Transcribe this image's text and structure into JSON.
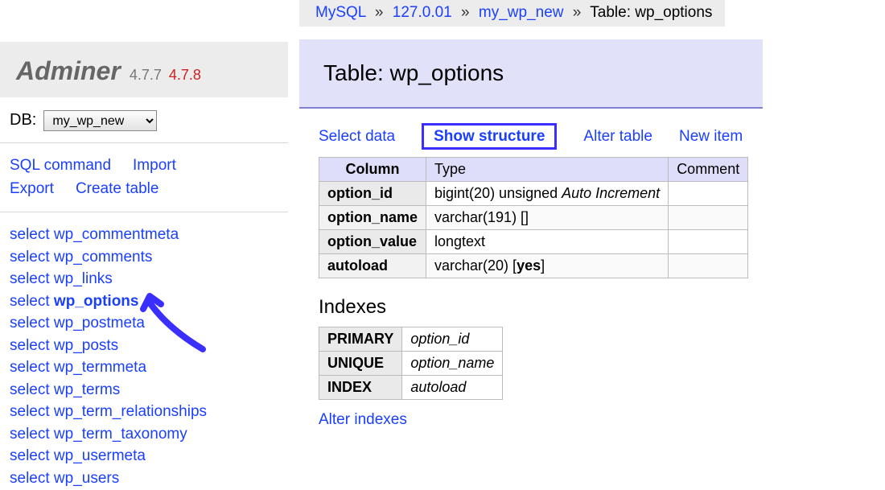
{
  "colors": {
    "link": "#1a3fff",
    "accent_bg": "#e1e1fa",
    "accent_border": "#3b2fff",
    "sidebar_bg": "#ececec",
    "warn": "#d02020"
  },
  "logo": {
    "name": "Adminer",
    "version": "4.7.7",
    "new_version": "4.7.8"
  },
  "db": {
    "label": "DB:",
    "selected": "my_wp_new"
  },
  "sidebar_cmds": {
    "sql": "SQL command",
    "import": "Import",
    "export": "Export",
    "create": "Create table"
  },
  "tables": [
    {
      "select": "select",
      "name": "wp_commentmeta"
    },
    {
      "select": "select",
      "name": "wp_comments"
    },
    {
      "select": "select",
      "name": "wp_links"
    },
    {
      "select": "select",
      "name": "wp_options",
      "active": true
    },
    {
      "select": "select",
      "name": "wp_postmeta"
    },
    {
      "select": "select",
      "name": "wp_posts"
    },
    {
      "select": "select",
      "name": "wp_termmeta"
    },
    {
      "select": "select",
      "name": "wp_terms"
    },
    {
      "select": "select",
      "name": "wp_term_relationships"
    },
    {
      "select": "select",
      "name": "wp_term_taxonomy"
    },
    {
      "select": "select",
      "name": "wp_usermeta"
    },
    {
      "select": "select",
      "name": "wp_users"
    }
  ],
  "breadcrumb": {
    "driver": "MySQL",
    "host": "127.0.01",
    "database": "my_wp_new",
    "tail_label": "Table:",
    "tail_value": "wp_options"
  },
  "heading": {
    "prefix": "Table:",
    "name": "wp_options"
  },
  "tabs": {
    "select_data": "Select data",
    "show_structure": "Show structure",
    "alter_table": "Alter table",
    "new_item": "New item"
  },
  "columns_table": {
    "headers": {
      "column": "Column",
      "type": "Type",
      "comment": "Comment"
    },
    "rows": [
      {
        "name": "option_id",
        "type_pre": "bigint(20) unsigned ",
        "type_em": "Auto Increment",
        "type_post": ""
      },
      {
        "name": "option_name",
        "type_pre": "varchar(191) ",
        "type_em": "",
        "type_post": "[]"
      },
      {
        "name": "option_value",
        "type_pre": "longtext",
        "type_em": "",
        "type_post": ""
      },
      {
        "name": "autoload",
        "type_pre": "varchar(20) [",
        "type_em": "",
        "type_bold": "yes",
        "type_post": "]"
      }
    ]
  },
  "indexes": {
    "heading": "Indexes",
    "rows": [
      {
        "type": "PRIMARY",
        "cols": "option_id"
      },
      {
        "type": "UNIQUE",
        "cols": "option_name"
      },
      {
        "type": "INDEX",
        "cols": "autoload"
      }
    ],
    "alter_link": "Alter indexes"
  }
}
